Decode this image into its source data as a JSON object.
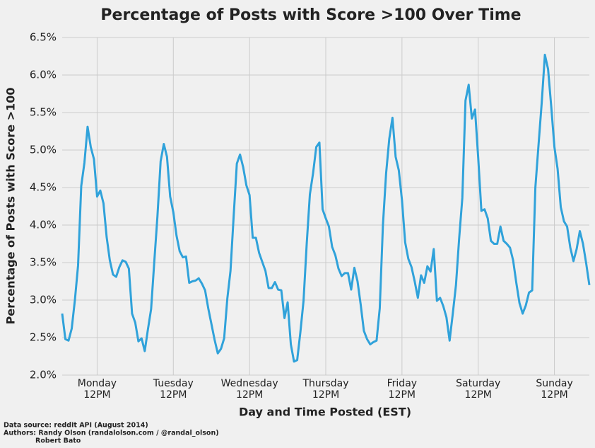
{
  "chart_data": {
    "type": "line",
    "title": "Percentage of Posts with Score >100 Over Time",
    "xlabel": "Day and Time Posted (EST)",
    "ylabel": "Percentage of Posts with Score >100",
    "notes": [
      "Data source: reddit API (August 2014)",
      "Authors: Randy Olson (randalolson.com / @randal_olson)",
      "Robert Bato"
    ],
    "x": [
      1,
      2,
      3,
      4,
      5,
      6,
      7,
      8,
      9,
      10,
      11,
      12,
      13,
      14,
      15,
      16,
      17,
      18,
      19,
      20,
      21,
      22,
      23,
      24,
      25,
      26,
      27,
      28,
      29,
      30,
      31,
      32,
      33,
      34,
      35,
      36,
      37,
      38,
      39,
      40,
      41,
      42,
      43,
      44,
      45,
      46,
      47,
      48,
      49,
      50,
      51,
      52,
      53,
      54,
      55,
      56,
      57,
      58,
      59,
      60,
      61,
      62,
      63,
      64,
      65,
      66,
      67,
      68,
      69,
      70,
      71,
      72,
      73,
      74,
      75,
      76,
      77,
      78,
      79,
      80,
      81,
      82,
      83,
      84,
      85,
      86,
      87,
      88,
      89,
      90,
      91,
      92,
      93,
      94,
      95,
      96,
      97,
      98,
      99,
      100,
      101,
      102,
      103,
      104,
      105,
      106,
      107,
      108,
      109,
      110,
      111,
      112,
      113,
      114,
      115,
      116,
      117,
      118,
      119,
      120,
      121,
      122,
      123,
      124,
      125,
      126,
      127,
      128,
      129,
      130,
      131,
      132,
      133,
      134,
      135,
      136,
      137,
      138,
      139,
      140,
      141,
      142,
      143,
      144,
      145,
      146,
      147,
      148,
      149,
      150,
      151,
      152,
      153,
      154,
      155,
      156,
      157,
      158,
      159,
      160,
      161,
      162,
      163,
      164,
      165,
      166,
      167
    ],
    "series": [
      {
        "name": "Percentage of Posts with Score >100",
        "color": "#30a2da",
        "values": [
          2.82,
          2.48,
          2.46,
          2.62,
          3.0,
          3.46,
          4.52,
          4.83,
          5.31,
          5.04,
          4.88,
          4.38,
          4.46,
          4.29,
          3.84,
          3.53,
          3.34,
          3.31,
          3.44,
          3.53,
          3.51,
          3.42,
          2.82,
          2.7,
          2.45,
          2.49,
          2.32,
          2.61,
          2.88,
          3.51,
          4.12,
          4.85,
          5.08,
          4.91,
          4.38,
          4.17,
          3.86,
          3.65,
          3.57,
          3.58,
          3.23,
          3.25,
          3.26,
          3.29,
          3.22,
          3.13,
          2.89,
          2.68,
          2.47,
          2.29,
          2.35,
          2.49,
          3.02,
          3.39,
          4.12,
          4.82,
          4.94,
          4.77,
          4.53,
          4.4,
          3.83,
          3.83,
          3.63,
          3.51,
          3.39,
          3.16,
          3.16,
          3.24,
          3.14,
          3.13,
          2.76,
          2.97,
          2.41,
          2.18,
          2.2,
          2.57,
          2.99,
          3.75,
          4.41,
          4.69,
          5.04,
          5.1,
          4.21,
          4.09,
          3.98,
          3.71,
          3.6,
          3.42,
          3.32,
          3.36,
          3.36,
          3.14,
          3.43,
          3.25,
          2.94,
          2.59,
          2.48,
          2.41,
          2.44,
          2.46,
          2.89,
          4.0,
          4.69,
          5.15,
          5.43,
          4.91,
          4.73,
          4.33,
          3.77,
          3.55,
          3.44,
          3.25,
          3.03,
          3.33,
          3.23,
          3.45,
          3.38,
          3.68,
          2.99,
          3.03,
          2.92,
          2.77,
          2.46,
          2.82,
          3.2,
          3.82,
          4.36,
          5.66,
          5.87,
          5.42,
          5.54,
          4.9,
          4.19,
          4.21,
          4.09,
          3.79,
          3.75,
          3.75,
          3.98,
          3.79,
          3.75,
          3.7,
          3.53,
          3.23,
          2.96,
          2.82,
          2.93,
          3.1,
          3.13,
          4.5,
          5.07,
          5.63,
          6.27,
          6.08,
          5.58,
          5.04,
          4.75,
          4.24,
          4.05,
          3.98,
          3.7,
          3.52,
          3.68,
          3.92,
          3.75,
          3.49,
          3.2
        ]
      }
    ],
    "xlim": [
      1,
      167
    ],
    "xticks": [
      {
        "value": 12,
        "label": "Monday\n12PM"
      },
      {
        "value": 36,
        "label": "Tuesday\n12PM"
      },
      {
        "value": 60,
        "label": "Wednesday\n12PM"
      },
      {
        "value": 84,
        "label": "Thursday\n12PM"
      },
      {
        "value": 108,
        "label": "Friday\n12PM"
      },
      {
        "value": 132,
        "label": "Saturday\n12PM"
      },
      {
        "value": 156,
        "label": "Sunday\n12PM"
      }
    ],
    "ylim": [
      2.0,
      6.5
    ],
    "yticks": [
      {
        "value": 2.0,
        "label": "2.0%"
      },
      {
        "value": 2.5,
        "label": "2.5%"
      },
      {
        "value": 3.0,
        "label": "3.0%"
      },
      {
        "value": 3.5,
        "label": "3.5%"
      },
      {
        "value": 4.0,
        "label": "4.0%"
      },
      {
        "value": 4.5,
        "label": "4.5%"
      },
      {
        "value": 5.0,
        "label": "5.0%"
      },
      {
        "value": 5.5,
        "label": "5.5%"
      },
      {
        "value": 6.0,
        "label": "6.0%"
      },
      {
        "value": 6.5,
        "label": "6.5%"
      }
    ],
    "grid": true
  }
}
